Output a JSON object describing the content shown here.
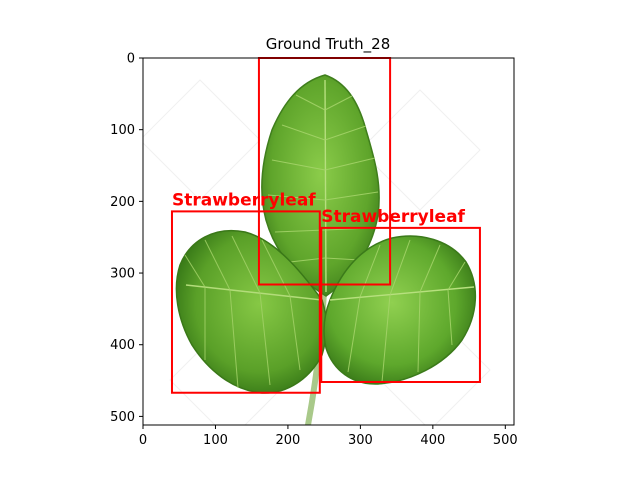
{
  "title": "Ground Truth_28",
  "image": {
    "width": 512,
    "height": 512,
    "description_colors": {
      "leaf_light": "#8bcc4a",
      "leaf_mid": "#5fa52b",
      "leaf_dark": "#3b7a1a",
      "stem": "#a9c98a",
      "background": "#ffffff"
    }
  },
  "axes": {
    "xlim": [
      0,
      512
    ],
    "ylim": [
      512,
      0
    ],
    "xticks": [
      0,
      100,
      200,
      300,
      400,
      500
    ],
    "yticks": [
      0,
      100,
      200,
      300,
      400,
      500
    ]
  },
  "box_color": "#ff0000",
  "boxes": [
    {
      "label": "",
      "x0": 160,
      "y0": 0,
      "x1": 341,
      "y1": 316
    },
    {
      "label": "Strawberryleaf",
      "x0": 40,
      "y0": 214,
      "x1": 244,
      "y1": 467
    },
    {
      "label": "Strawberryleaf",
      "x0": 246,
      "y0": 237,
      "x1": 465,
      "y1": 452
    }
  ]
}
